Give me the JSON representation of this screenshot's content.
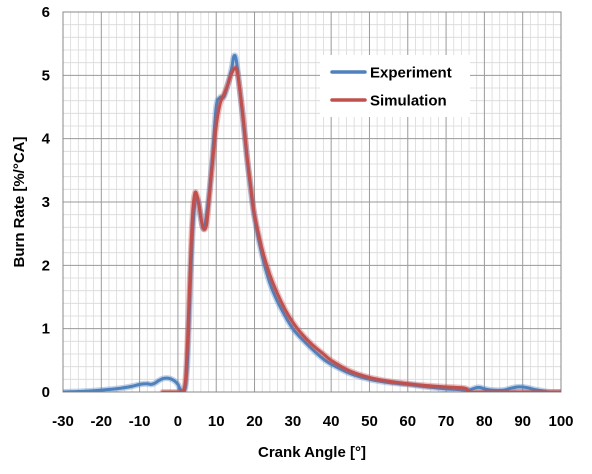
{
  "chart_data": {
    "type": "line",
    "title": "",
    "xlabel": "Crank Angle [°]",
    "ylabel": "Burn Rate [%/°CA]",
    "xlim": [
      -30,
      100
    ],
    "ylim": [
      0,
      6
    ],
    "x_ticks": [
      "-30",
      "-20",
      "-10",
      "0",
      "10",
      "20",
      "30",
      "40",
      "50",
      "60",
      "70",
      "80",
      "90",
      "100"
    ],
    "y_ticks": [
      "0",
      "1",
      "2",
      "3",
      "4",
      "5",
      "6"
    ],
    "grid": true,
    "minor_grid": true,
    "legend_position": "top-right",
    "series": [
      {
        "name": "Experiment",
        "color": "#4F81BD",
        "points": [
          [
            -30,
            0.0
          ],
          [
            -25,
            0.01
          ],
          [
            -20,
            0.03
          ],
          [
            -15,
            0.06
          ],
          [
            -12,
            0.09
          ],
          [
            -10,
            0.12
          ],
          [
            -8,
            0.13
          ],
          [
            -7,
            0.12
          ],
          [
            -6,
            0.14
          ],
          [
            -5,
            0.18
          ],
          [
            -4,
            0.21
          ],
          [
            -3,
            0.22
          ],
          [
            -2,
            0.21
          ],
          [
            -1,
            0.18
          ],
          [
            0,
            0.12
          ],
          [
            0.5,
            0.05
          ],
          [
            1,
            0.02
          ],
          [
            1.5,
            0.0
          ],
          [
            2,
            0.1
          ],
          [
            2.5,
            0.5
          ],
          [
            3,
            1.3
          ],
          [
            3.5,
            2.1
          ],
          [
            4,
            2.7
          ],
          [
            4.5,
            3.0
          ],
          [
            5,
            3.05
          ],
          [
            5.5,
            2.95
          ],
          [
            6,
            2.75
          ],
          [
            6.5,
            2.6
          ],
          [
            7,
            2.62
          ],
          [
            8,
            3.05
          ],
          [
            9,
            3.7
          ],
          [
            10,
            4.5
          ],
          [
            11,
            4.65
          ],
          [
            12,
            4.66
          ],
          [
            13,
            4.85
          ],
          [
            14,
            5.1
          ],
          [
            14.6,
            5.3
          ],
          [
            15.2,
            5.25
          ],
          [
            16,
            4.85
          ],
          [
            17,
            4.3
          ],
          [
            18,
            3.7
          ],
          [
            19,
            3.2
          ],
          [
            20,
            2.75
          ],
          [
            22,
            2.15
          ],
          [
            24,
            1.72
          ],
          [
            26,
            1.43
          ],
          [
            28,
            1.2
          ],
          [
            30,
            1.0
          ],
          [
            32,
            0.86
          ],
          [
            35,
            0.68
          ],
          [
            38,
            0.52
          ],
          [
            40,
            0.44
          ],
          [
            45,
            0.29
          ],
          [
            50,
            0.2
          ],
          [
            55,
            0.15
          ],
          [
            60,
            0.12
          ],
          [
            65,
            0.08
          ],
          [
            70,
            0.05
          ],
          [
            73,
            0.04
          ],
          [
            75,
            0.03
          ],
          [
            76,
            0.03
          ],
          [
            77,
            0.05
          ],
          [
            78,
            0.07
          ],
          [
            79,
            0.07
          ],
          [
            80,
            0.05
          ],
          [
            82,
            0.03
          ],
          [
            85,
            0.03
          ],
          [
            87,
            0.06
          ],
          [
            89,
            0.08
          ],
          [
            91,
            0.07
          ],
          [
            93,
            0.04
          ],
          [
            95,
            0.02
          ],
          [
            97,
            0.0
          ],
          [
            100,
            0.0
          ]
        ]
      },
      {
        "name": "Simulation",
        "color": "#C0504D",
        "points": [
          [
            -4,
            0.0
          ],
          [
            0,
            0.0
          ],
          [
            1,
            0.0
          ],
          [
            1.5,
            0.03
          ],
          [
            2,
            0.2
          ],
          [
            2.5,
            0.8
          ],
          [
            3,
            1.6
          ],
          [
            3.5,
            2.4
          ],
          [
            4,
            2.95
          ],
          [
            4.5,
            3.15
          ],
          [
            5,
            3.1
          ],
          [
            5.5,
            2.95
          ],
          [
            6,
            2.75
          ],
          [
            6.5,
            2.6
          ],
          [
            7,
            2.57
          ],
          [
            7.5,
            2.65
          ],
          [
            8,
            2.95
          ],
          [
            9,
            3.6
          ],
          [
            10,
            4.2
          ],
          [
            11,
            4.55
          ],
          [
            12,
            4.7
          ],
          [
            13,
            4.85
          ],
          [
            14,
            5.03
          ],
          [
            15,
            5.12
          ],
          [
            15.5,
            5.05
          ],
          [
            16,
            4.85
          ],
          [
            17,
            4.35
          ],
          [
            18,
            3.75
          ],
          [
            19,
            3.25
          ],
          [
            20,
            2.8
          ],
          [
            22,
            2.25
          ],
          [
            24,
            1.85
          ],
          [
            26,
            1.55
          ],
          [
            28,
            1.3
          ],
          [
            30,
            1.1
          ],
          [
            32,
            0.94
          ],
          [
            35,
            0.75
          ],
          [
            38,
            0.6
          ],
          [
            40,
            0.5
          ],
          [
            45,
            0.33
          ],
          [
            50,
            0.23
          ],
          [
            55,
            0.17
          ],
          [
            60,
            0.13
          ],
          [
            65,
            0.1
          ],
          [
            70,
            0.08
          ],
          [
            75,
            0.06
          ],
          [
            76,
            0.0
          ],
          [
            80,
            0.0
          ],
          [
            85,
            0.0
          ],
          [
            90,
            0.0
          ],
          [
            95,
            0.0
          ],
          [
            100,
            0.0
          ]
        ]
      }
    ]
  }
}
